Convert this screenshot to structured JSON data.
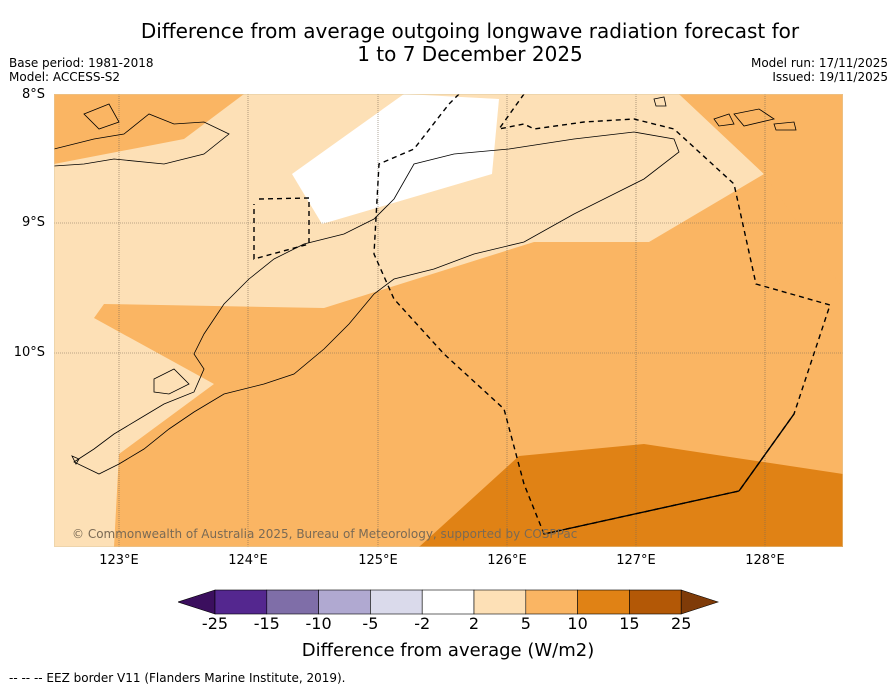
{
  "title_line1": "Difference from average outgoing longwave radiation forecast for",
  "title_line2": "1 to 7 December 2025",
  "meta_left": [
    "Base period: 1981-2018",
    "Model: ACCESS-S2"
  ],
  "meta_right": [
    "Model run: 17/11/2025",
    "Issued: 19/11/2025"
  ],
  "map": {
    "lat_labels": [
      "8°S",
      "9°S",
      "10°S"
    ],
    "lon_labels": [
      "123°E",
      "124°E",
      "125°E",
      "126°E",
      "127°E",
      "128°E"
    ],
    "copyright": "© Commonwealth of Australia 2025, Bureau of Meteorology, supported by COSPPac",
    "colors": {
      "band_2_5": "#fde0b6",
      "band_5_10": "#fab563",
      "band_10_15": "#e08215",
      "neutral": "#ffffff",
      "grid": "#7a6a55"
    }
  },
  "colorbar": {
    "ticks": [
      "-25",
      "-15",
      "-10",
      "-5",
      "-2",
      "2",
      "5",
      "10",
      "15",
      "25"
    ],
    "colors": [
      "#3b0f5e",
      "#54278f",
      "#7f6ea8",
      "#b0a9d1",
      "#dadaeb",
      "#ffffff",
      "#fde0b6",
      "#fab563",
      "#e08215",
      "#b35806",
      "#7f3b08"
    ],
    "label": "Difference from average (W/m2)"
  },
  "footer": "--  --  -- EEZ border V11 (Flanders Marine Institute, 2019)."
}
